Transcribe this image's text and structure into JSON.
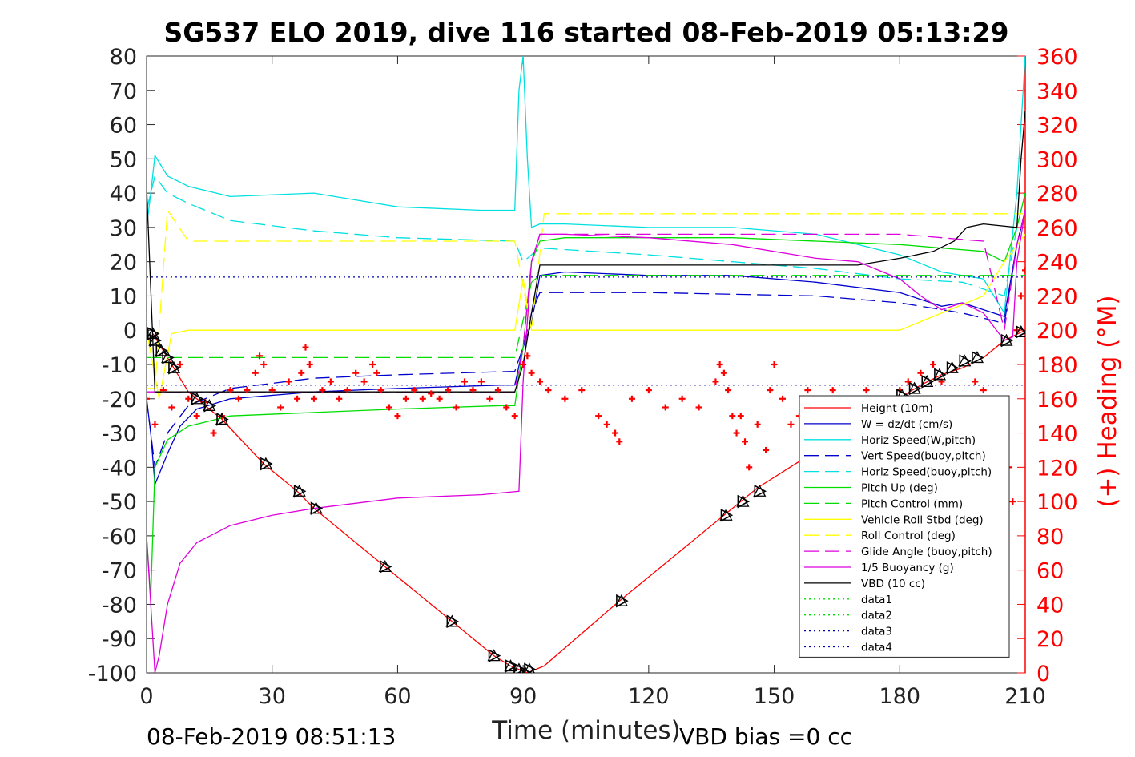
{
  "chart_data": {
    "type": "line",
    "title": "SG537 ELO 2019, dive 116 started 08-Feb-2019 05:13:29",
    "xlabel": "Time (minutes)",
    "ylabel_right": "(+) Heading (°M)",
    "xlim": [
      0,
      210
    ],
    "ylim": [
      -100,
      80
    ],
    "ylim_right": [
      0,
      360
    ],
    "x_ticks": [
      "0",
      "30",
      "60",
      "90",
      "120",
      "150",
      "180",
      "210"
    ],
    "y_ticks": [
      "80",
      "70",
      "60",
      "50",
      "40",
      "30",
      "20",
      "10",
      "0",
      "-10",
      "-20",
      "-30",
      "-40",
      "-50",
      "-60",
      "-70",
      "-80",
      "-90",
      "-100"
    ],
    "y_ticks_right": [
      "360",
      "340",
      "320",
      "300",
      "280",
      "260",
      "240",
      "220",
      "200",
      "180",
      "160",
      "140",
      "120",
      "100",
      "80",
      "60",
      "40",
      "20",
      "0"
    ],
    "footer_left": "08-Feb-2019 08:51:13",
    "footer_right": "VBD bias =0 cc",
    "legend_position": "lower-right",
    "colors": {
      "red": "#ff0000",
      "blue": "#0000cc",
      "cyan": "#00e0e0",
      "green": "#00dd00",
      "yellow": "#ffff00",
      "magenta": "#dd00dd",
      "black": "#000000",
      "navy": "#0000aa"
    },
    "series": [
      {
        "name": "Height (10m)",
        "color": "#ff0000",
        "style": "solid",
        "x": [
          1.5,
          2,
          10,
          18,
          28,
          36,
          40,
          57,
          73,
          83,
          87,
          89,
          91,
          93,
          95,
          113,
          138,
          142,
          146,
          181,
          185,
          190,
          195,
          200,
          205,
          210
        ],
        "y": [
          -1,
          -2,
          -18,
          -26,
          -39,
          -47,
          -52,
          -69,
          -85,
          -95,
          -98,
          -99,
          -100,
          -99,
          -98,
          -79,
          -54,
          -50,
          -46,
          -19,
          -16,
          -13,
          -11,
          -8,
          -3,
          0
        ]
      },
      {
        "name": "W = dz/dt (cm/s)",
        "color": "#0000cc",
        "style": "solid",
        "x": [
          0,
          1,
          2,
          3,
          5,
          8,
          12,
          20,
          40,
          60,
          85,
          88,
          90,
          92,
          94,
          100,
          120,
          140,
          160,
          180,
          190,
          195,
          200,
          205,
          208,
          210
        ],
        "y": [
          -20,
          -30,
          -45,
          -42,
          -36,
          -28,
          -23,
          -20,
          -18,
          -17,
          -16,
          -16,
          -5,
          2,
          16,
          17,
          16,
          16,
          14,
          11,
          7,
          8,
          6,
          4,
          25,
          35
        ]
      },
      {
        "name": "Horiz Speed(W,pitch)",
        "color": "#00e0e0",
        "style": "solid",
        "x": [
          0,
          1,
          2,
          5,
          10,
          20,
          40,
          60,
          80,
          88,
          89,
          90,
          91,
          92,
          94,
          100,
          120,
          140,
          160,
          180,
          190,
          200,
          205,
          208,
          210
        ],
        "y": [
          30,
          40,
          51,
          45,
          42,
          39,
          40,
          36,
          35,
          35,
          70,
          80,
          50,
          30,
          31,
          31,
          30,
          30,
          28,
          22,
          17,
          15,
          5,
          40,
          80
        ]
      },
      {
        "name": "Vert Speed(buoy,pitch)",
        "color": "#0000cc",
        "style": "dashed",
        "x": [
          0,
          2,
          5,
          10,
          20,
          40,
          60,
          88,
          90,
          92,
          94,
          120,
          160,
          180,
          195,
          205,
          208,
          210
        ],
        "y": [
          -20,
          -40,
          -30,
          -22,
          -17,
          -14,
          -13,
          -12,
          -5,
          5,
          11,
          11,
          10,
          8,
          5,
          2,
          25,
          35
        ]
      },
      {
        "name": "Horiz Speed(buoy,pitch)",
        "color": "#00e0e0",
        "style": "dashed",
        "x": [
          0,
          2,
          5,
          10,
          20,
          40,
          60,
          88,
          90,
          92,
          94,
          120,
          160,
          180,
          195,
          205,
          208,
          210
        ],
        "y": [
          35,
          45,
          40,
          37,
          32,
          29,
          27,
          26,
          20,
          22,
          24,
          22,
          18,
          15,
          14,
          10,
          30,
          40
        ]
      },
      {
        "name": "Pitch Up (deg)",
        "color": "#00dd00",
        "style": "solid",
        "x": [
          0,
          1,
          2,
          5,
          10,
          20,
          40,
          60,
          85,
          88,
          90,
          92,
          94,
          100,
          120,
          140,
          160,
          180,
          190,
          200,
          205,
          208,
          210
        ],
        "y": [
          -60,
          -78,
          -40,
          -32,
          -28,
          -25,
          -24,
          -23,
          -22,
          -22,
          -5,
          20,
          26,
          27,
          27,
          27,
          26,
          25,
          24,
          23,
          20,
          30,
          40
        ]
      },
      {
        "name": "Pitch Control (mm)",
        "color": "#00dd00",
        "style": "dashed",
        "x": [
          0,
          2,
          88,
          92,
          94,
          160,
          210
        ],
        "y": [
          -8,
          -8,
          -8,
          14,
          16,
          16,
          16
        ]
      },
      {
        "name": "Vehicle Roll Stbd (deg)",
        "color": "#ffff00",
        "style": "solid",
        "x": [
          0,
          3,
          6,
          10,
          40,
          80,
          88,
          90,
          92,
          95,
          120,
          140,
          160,
          180,
          200,
          205,
          210
        ],
        "y": [
          0,
          -20,
          -1,
          0,
          0,
          0,
          0,
          15,
          0,
          0,
          0,
          0,
          0,
          0,
          10,
          20,
          28
        ]
      },
      {
        "name": "Roll Control (deg)",
        "color": "#ffff00",
        "style": "dashed",
        "x": [
          0,
          2,
          5,
          10,
          40,
          88,
          92,
          95,
          140,
          160,
          180,
          210
        ],
        "y": [
          -17,
          -17,
          35,
          26,
          26,
          26,
          0,
          34,
          34,
          34,
          34,
          34
        ]
      },
      {
        "name": "Glide Angle (buoy,pitch)",
        "color": "#dd00dd",
        "style": "dashed",
        "x": [
          0,
          88,
          90,
          92,
          94,
          120,
          160,
          180,
          190,
          200,
          205,
          208,
          210
        ],
        "y": [
          -18,
          -18,
          -5,
          20,
          28,
          28,
          28,
          28,
          27,
          26,
          0,
          25,
          35
        ]
      },
      {
        "name": "1/5 Buoyancy (g)",
        "color": "#dd00dd",
        "style": "solid",
        "x": [
          0,
          2,
          3,
          5,
          8,
          12,
          20,
          30,
          40,
          60,
          80,
          89,
          90,
          92,
          94,
          100,
          120,
          140,
          160,
          170,
          180,
          185,
          190,
          195,
          200,
          205,
          207,
          208,
          210
        ],
        "y": [
          -60,
          -100,
          -95,
          -80,
          -68,
          -62,
          -57,
          -54,
          -52,
          -49,
          -48,
          -47,
          -15,
          20,
          28,
          28,
          27,
          25,
          21,
          20,
          15,
          10,
          6,
          8,
          5,
          -3,
          -2,
          20,
          35
        ]
      },
      {
        "name": "VBD (10 cc)",
        "color": "#000000",
        "style": "solid",
        "x": [
          0,
          2,
          5,
          88,
          90,
          92,
          94,
          120,
          170,
          180,
          188,
          193,
          196,
          200,
          208,
          209,
          210
        ],
        "y": [
          42,
          -18,
          -18,
          -18,
          -10,
          5,
          19,
          19,
          19,
          21,
          23,
          26,
          30,
          31,
          30,
          50,
          64
        ]
      },
      {
        "name": "data1",
        "color": "#00dd00",
        "style": "dotted",
        "x": [],
        "y": []
      },
      {
        "name": "data2",
        "color": "#00dd00",
        "style": "dotted",
        "x": [],
        "y": []
      },
      {
        "name": "data3",
        "color": "#0000aa",
        "style": "dotted",
        "x": [
          0,
          210
        ],
        "y": [
          -16,
          -16
        ]
      },
      {
        "name": "data4",
        "color": "#0000aa",
        "style": "dotted",
        "x": [
          0,
          210
        ],
        "y": [
          15.5,
          15.5
        ]
      }
    ],
    "heading": {
      "color": "#ff0000",
      "marker": "+",
      "axis": "right",
      "x": [
        0,
        2,
        4,
        6,
        8,
        10,
        12,
        14,
        16,
        18,
        20,
        22,
        24,
        26,
        27,
        28,
        30,
        32,
        34,
        36,
        37,
        38,
        39,
        40,
        42,
        44,
        46,
        48,
        50,
        52,
        54,
        55,
        56,
        58,
        60,
        62,
        64,
        66,
        68,
        70,
        72,
        74,
        76,
        78,
        80,
        82,
        84,
        86,
        88,
        90,
        91,
        92,
        94,
        96,
        100,
        104,
        108,
        110,
        112,
        113,
        116,
        120,
        124,
        128,
        132,
        136,
        137,
        138,
        139,
        140,
        141,
        142,
        143,
        144,
        146,
        148,
        149,
        150,
        152,
        154,
        156,
        158,
        160,
        162,
        164,
        166,
        168,
        170,
        172,
        174,
        176,
        178,
        180,
        182,
        185,
        188,
        190,
        192,
        194,
        196,
        198,
        200,
        202,
        204,
        206,
        207,
        208,
        209,
        210
      ],
      "y": [
        160,
        145,
        165,
        155,
        180,
        160,
        150,
        158,
        140,
        150,
        165,
        160,
        165,
        175,
        185,
        180,
        165,
        155,
        170,
        160,
        175,
        190,
        180,
        160,
        165,
        170,
        160,
        165,
        175,
        170,
        180,
        175,
        165,
        155,
        150,
        160,
        165,
        160,
        163,
        160,
        165,
        155,
        170,
        165,
        170,
        160,
        165,
        155,
        150,
        180,
        185,
        175,
        170,
        165,
        160,
        165,
        150,
        145,
        140,
        135,
        160,
        165,
        155,
        160,
        155,
        170,
        180,
        175,
        165,
        150,
        140,
        150,
        135,
        120,
        145,
        130,
        165,
        180,
        160,
        145,
        150,
        165,
        155,
        150,
        165,
        160,
        155,
        160,
        165,
        155,
        160,
        150,
        165,
        170,
        175,
        180,
        170,
        160,
        155,
        160,
        170,
        165,
        150,
        140,
        120,
        100,
        200,
        220,
        235
      ]
    },
    "triangle_markers": {
      "x": [
        1.5,
        2,
        3.5,
        5,
        6.5,
        12,
        15,
        18,
        28.5,
        36.5,
        40.5,
        57,
        73,
        83,
        87,
        89,
        90.5,
        91.5,
        113.5,
        138.5,
        142.5,
        146.5,
        180.5,
        183.5,
        186.5,
        189.5,
        192.5,
        195.5,
        198.5,
        205.5,
        209
      ],
      "y": [
        -1,
        -3,
        -6,
        -8,
        -11,
        -20,
        -22,
        -26,
        -39,
        -47,
        -52,
        -69,
        -85,
        -95,
        -98,
        -99,
        -100,
        -99,
        -79,
        -54,
        -50,
        -47,
        -19,
        -17,
        -15,
        -13,
        -11,
        -9,
        -8,
        -3,
        -0.5
      ]
    }
  }
}
